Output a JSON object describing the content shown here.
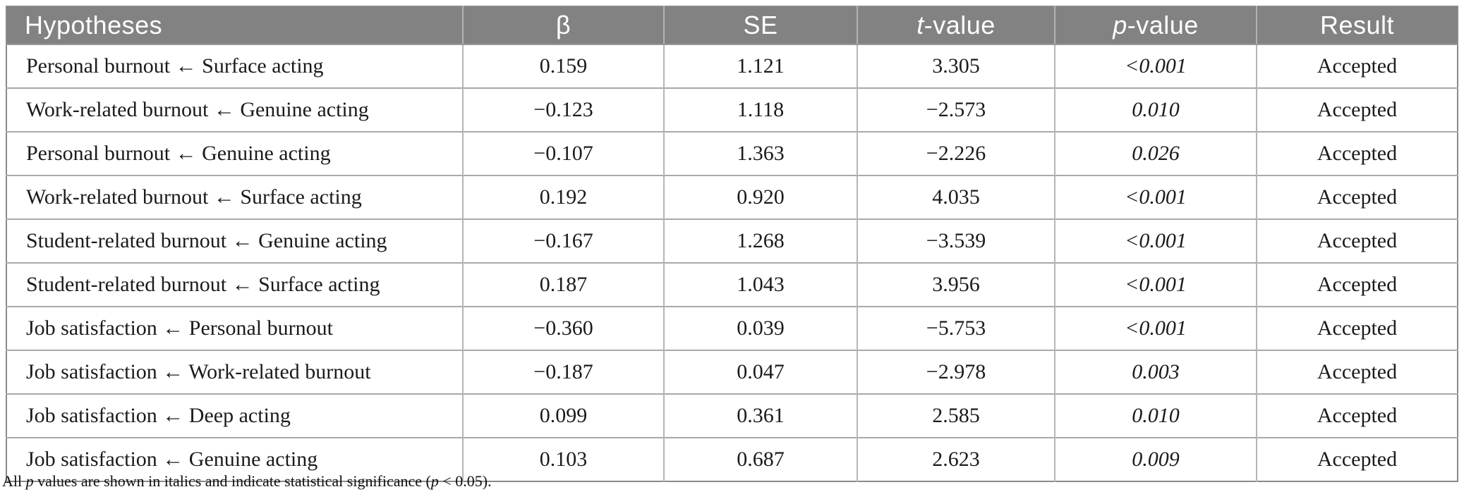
{
  "table": {
    "columns": [
      {
        "label": "Hypotheses"
      },
      {
        "label": "β"
      },
      {
        "label": "SE"
      },
      {
        "italic": "t",
        "rest": "-value"
      },
      {
        "italic": "p",
        "rest": "-value"
      },
      {
        "label": "Result"
      }
    ],
    "rows": [
      {
        "hypothesis": "Personal burnout ← Surface acting",
        "beta": "0.159",
        "se": "1.121",
        "t": "3.305",
        "p": "<0.001",
        "result": "Accepted"
      },
      {
        "hypothesis": "Work-related burnout ← Genuine acting",
        "beta": "−0.123",
        "se": "1.118",
        "t": "−2.573",
        "p": "0.010",
        "result": "Accepted"
      },
      {
        "hypothesis": "Personal burnout ← Genuine acting",
        "beta": "−0.107",
        "se": "1.363",
        "t": "−2.226",
        "p": "0.026",
        "result": "Accepted"
      },
      {
        "hypothesis": "Work-related burnout ← Surface acting",
        "beta": "0.192",
        "se": "0.920",
        "t": "4.035",
        "p": "<0.001",
        "result": "Accepted"
      },
      {
        "hypothesis": "Student-related burnout ← Genuine acting",
        "beta": "−0.167",
        "se": "1.268",
        "t": "−3.539",
        "p": "<0.001",
        "result": "Accepted"
      },
      {
        "hypothesis": "Student-related burnout ← Surface acting",
        "beta": "0.187",
        "se": "1.043",
        "t": "3.956",
        "p": "<0.001",
        "result": "Accepted"
      },
      {
        "hypothesis": "Job satisfaction ← Personal burnout",
        "beta": "−0.360",
        "se": "0.039",
        "t": "−5.753",
        "p": "<0.001",
        "result": "Accepted"
      },
      {
        "hypothesis": "Job satisfaction ← Work-related burnout",
        "beta": "−0.187",
        "se": "0.047",
        "t": "−2.978",
        "p": "0.003",
        "result": "Accepted"
      },
      {
        "hypothesis": "Job satisfaction ← Deep acting",
        "beta": "0.099",
        "se": "0.361",
        "t": "2.585",
        "p": "0.010",
        "result": "Accepted"
      },
      {
        "hypothesis": "Job satisfaction ← Genuine acting",
        "beta": "0.103",
        "se": "0.687",
        "t": "2.623",
        "p": "0.009",
        "result": "Accepted"
      }
    ]
  },
  "footnote": {
    "part1": "All ",
    "italic1": "p",
    "part2": " values are shown in italics and indicate statistical significance (",
    "italic2": "p",
    "part3": " < 0.05)."
  },
  "colors": {
    "header_bg": "#828282",
    "header_text": "#ffffff",
    "header_divider": "#b2b2b2",
    "grid_line_horizontal": "#a9a9a9",
    "grid_line_vertical": "#b5b5b5",
    "outer_border": "#8a8a8a",
    "body_text": "#1b1b1b",
    "body_bg": "#ffffff"
  }
}
